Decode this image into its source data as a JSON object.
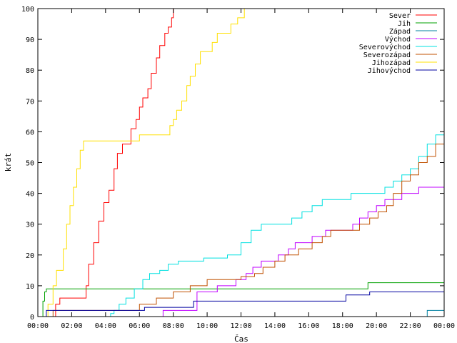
{
  "chart_data": {
    "type": "line",
    "title": "",
    "xlabel": "Čas",
    "ylabel": "krát",
    "xlim": [
      0,
      24
    ],
    "ylim": [
      0,
      100
    ],
    "x_ticks": [
      "00:00",
      "02:00",
      "04:00",
      "06:00",
      "08:00",
      "10:00",
      "12:00",
      "14:00",
      "16:00",
      "18:00",
      "20:00",
      "22:00",
      "00:00"
    ],
    "y_ticks": [
      "0",
      "10",
      "20",
      "30",
      "40",
      "50",
      "60",
      "70",
      "80",
      "90",
      "100"
    ],
    "legend_position": "top-right",
    "grid": false,
    "series": [
      {
        "name": "Sever",
        "color": "#ff0000",
        "x": [
          0,
          1.0,
          1.05,
          1.3,
          2.8,
          2.85,
          3.0,
          3.3,
          3.6,
          3.9,
          4.2,
          4.5,
          4.7,
          5.0,
          5.2,
          5.5,
          5.8,
          6.0,
          6.2,
          6.5,
          6.7,
          7.0,
          7.2,
          7.5,
          7.7,
          7.9,
          8.0,
          8.2
        ],
        "y": [
          0,
          0,
          4,
          6,
          6,
          10,
          17,
          24,
          31,
          37,
          41,
          48,
          53,
          56,
          56,
          61,
          64,
          68,
          71,
          74,
          79,
          84,
          88,
          92,
          94,
          97,
          100,
          100
        ]
      },
      {
        "name": "Jih",
        "color": "#00a000",
        "x": [
          0,
          0.2,
          0.3,
          0.4,
          0.5,
          19.4,
          19.5,
          24
        ],
        "y": [
          0,
          0,
          5,
          8,
          9,
          9,
          11,
          11
        ]
      },
      {
        "name": "Západ",
        "color": "#0080a0",
        "x": [
          0,
          22.9,
          23.0,
          24
        ],
        "y": [
          0,
          0,
          2,
          2
        ]
      },
      {
        "name": "Východ",
        "color": "#c000ff",
        "x": [
          0,
          7.3,
          7.4,
          9.3,
          9.4,
          10.5,
          10.6,
          11.5,
          11.7,
          12.0,
          12.3,
          12.7,
          13.2,
          13.6,
          14.2,
          14.8,
          15.2,
          15.8,
          16.2,
          17.0,
          17.5,
          18.0,
          18.6,
          19.0,
          19.5,
          20.0,
          20.5,
          21.0,
          21.5,
          22.0,
          22.5,
          23.0,
          23.5,
          24
        ],
        "y": [
          0,
          0,
          2,
          2,
          8,
          8,
          10,
          10,
          12,
          12,
          14,
          16,
          18,
          18,
          20,
          22,
          24,
          24,
          26,
          28,
          28,
          28,
          30,
          32,
          34,
          36,
          38,
          38,
          40,
          40,
          42,
          42,
          42,
          44
        ]
      },
      {
        "name": "Severovýchod",
        "color": "#00e0e0",
        "x": [
          0,
          4.2,
          4.3,
          4.5,
          4.8,
          5.2,
          5.7,
          6.2,
          6.6,
          7.2,
          7.7,
          8.3,
          9.2,
          9.8,
          10.5,
          11.2,
          12.0,
          12.6,
          13.2,
          14.3,
          15.0,
          15.6,
          16.2,
          16.8,
          17.8,
          18.5,
          20.0,
          20.5,
          21.0,
          21.5,
          22.0,
          22.5,
          23.0,
          23.5,
          24
        ],
        "y": [
          0,
          0,
          1,
          2,
          4,
          6,
          9,
          12,
          14,
          15,
          17,
          18,
          18,
          19,
          19,
          20,
          24,
          28,
          30,
          30,
          32,
          34,
          36,
          38,
          38,
          40,
          40,
          42,
          44,
          46,
          48,
          52,
          56,
          59,
          59
        ]
      },
      {
        "name": "Severozápad",
        "color": "#c05000",
        "x": [
          0,
          0.8,
          0.9,
          2.5,
          4.0,
          5.0,
          6.0,
          7.0,
          8.0,
          9.0,
          10.0,
          11.0,
          12.0,
          12.8,
          13.3,
          14.0,
          14.6,
          15.4,
          16.2,
          16.8,
          17.3,
          18.3,
          19.0,
          19.6,
          20.1,
          20.6,
          21.0,
          21.5,
          22.0,
          22.5,
          23.0,
          23.5,
          24
        ],
        "y": [
          0,
          0,
          2,
          2,
          2,
          2,
          4,
          6,
          8,
          10,
          12,
          12,
          13,
          14,
          16,
          18,
          20,
          22,
          24,
          26,
          28,
          28,
          30,
          32,
          34,
          36,
          40,
          44,
          46,
          50,
          52,
          56,
          58
        ]
      },
      {
        "name": "Jihozápad",
        "color": "#ffe000",
        "x": [
          0,
          0.4,
          0.6,
          0.9,
          1.1,
          1.3,
          1.5,
          1.7,
          1.9,
          2.1,
          2.3,
          2.5,
          2.7,
          3.0,
          5.0,
          6.0,
          7.0,
          7.7,
          7.8,
          8.0,
          8.2,
          8.5,
          8.8,
          9.0,
          9.3,
          9.6,
          10.0,
          10.3,
          10.6,
          11.0,
          11.4,
          11.8,
          12.2,
          12.5,
          24
        ],
        "y": [
          0,
          0,
          4,
          10,
          15,
          15,
          22,
          30,
          36,
          42,
          48,
          54,
          57,
          57,
          57,
          59,
          59,
          59,
          62,
          64,
          67,
          70,
          75,
          78,
          82,
          86,
          86,
          89,
          92,
          92,
          95,
          97,
          100,
          100,
          100
        ]
      },
      {
        "name": "Jihovýchod",
        "color": "#0000a0",
        "x": [
          0,
          0.3,
          0.5,
          3.9,
          4.0,
          6.2,
          6.3,
          9.1,
          9.2,
          18.0,
          18.2,
          19.4,
          19.6,
          24
        ],
        "y": [
          0,
          0,
          2,
          2,
          2,
          2,
          3,
          3,
          5,
          5,
          7,
          7,
          8,
          8
        ]
      }
    ]
  }
}
